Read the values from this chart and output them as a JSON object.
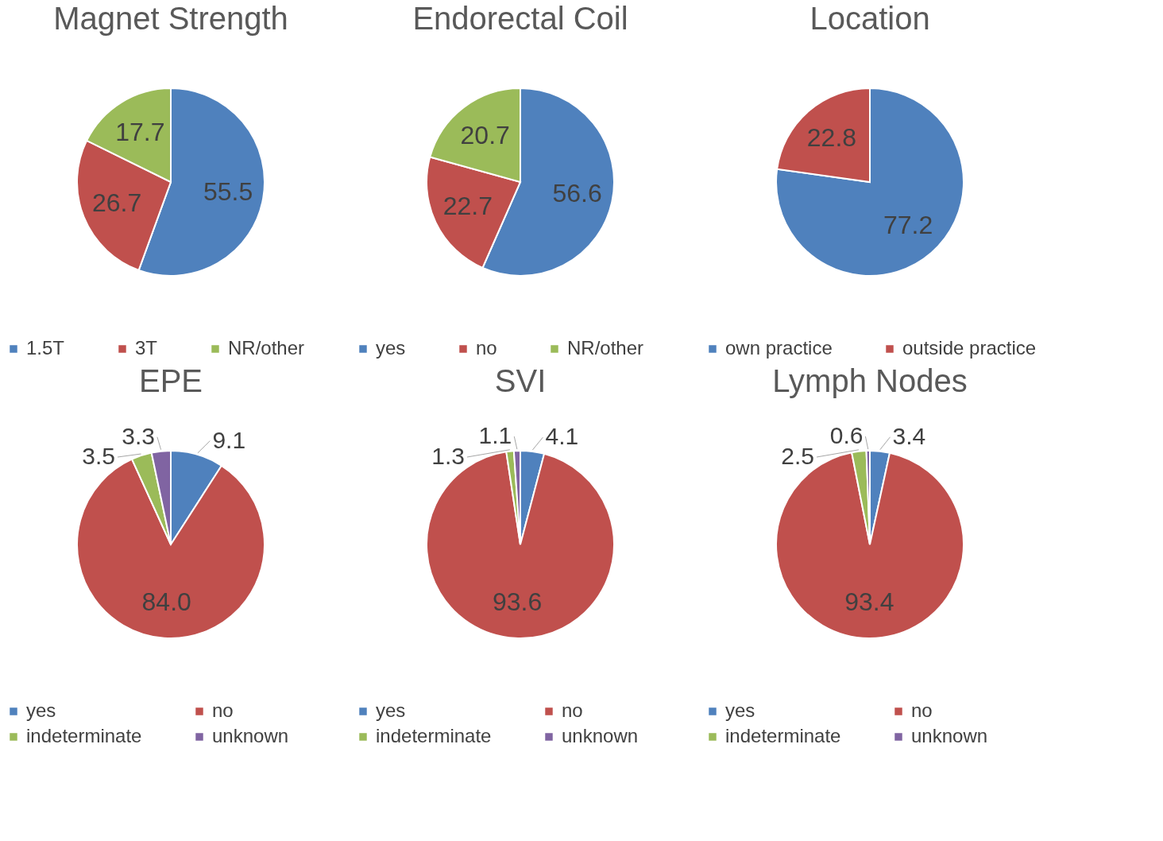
{
  "chart_data": [
    {
      "type": "pie",
      "title": "Magnet Strength",
      "categories": [
        "1.5T",
        "3T",
        "NR/other"
      ],
      "values": [
        55.5,
        26.7,
        17.7
      ],
      "value_labels": [
        "55.5",
        "26.7",
        "17.7"
      ],
      "colors": [
        "#4f81bd",
        "#c0504d",
        "#9bbb59"
      ],
      "legend": "bottom"
    },
    {
      "type": "pie",
      "title": "Endorectal Coil",
      "categories": [
        "yes",
        "no",
        "NR/other"
      ],
      "values": [
        56.6,
        22.7,
        20.7
      ],
      "value_labels": [
        "56.6",
        "22.7",
        "20.7"
      ],
      "colors": [
        "#4f81bd",
        "#c0504d",
        "#9bbb59"
      ],
      "legend": "bottom"
    },
    {
      "type": "pie",
      "title": "Location",
      "categories": [
        "own practice",
        "outside practice"
      ],
      "values": [
        77.2,
        22.8
      ],
      "value_labels": [
        "77.2",
        "22.8"
      ],
      "colors": [
        "#4f81bd",
        "#c0504d"
      ],
      "legend": "bottom"
    },
    {
      "type": "pie",
      "title": "EPE",
      "categories": [
        "yes",
        "no",
        "indeterminate",
        "unknown"
      ],
      "values": [
        9.1,
        84.0,
        3.5,
        3.3
      ],
      "value_labels": [
        "9.1",
        "84.0",
        "3.5",
        "3.3"
      ],
      "colors": [
        "#4f81bd",
        "#c0504d",
        "#9bbb59",
        "#8064a2"
      ],
      "legend": "bottom"
    },
    {
      "type": "pie",
      "title": "SVI",
      "categories": [
        "yes",
        "no",
        "indeterminate",
        "unknown"
      ],
      "values": [
        4.1,
        93.6,
        1.3,
        1.1
      ],
      "value_labels": [
        "4.1",
        "93.6",
        "1.3",
        "1.1"
      ],
      "colors": [
        "#4f81bd",
        "#c0504d",
        "#9bbb59",
        "#8064a2"
      ],
      "legend": "bottom"
    },
    {
      "type": "pie",
      "title": "Lymph Nodes",
      "categories": [
        "yes",
        "no",
        "indeterminate",
        "unknown"
      ],
      "values": [
        3.4,
        93.4,
        2.5,
        0.6
      ],
      "value_labels": [
        "3.4",
        "93.4",
        "2.5",
        "0.6"
      ],
      "colors": [
        "#4f81bd",
        "#c0504d",
        "#9bbb59",
        "#8064a2"
      ],
      "legend": "bottom"
    }
  ]
}
